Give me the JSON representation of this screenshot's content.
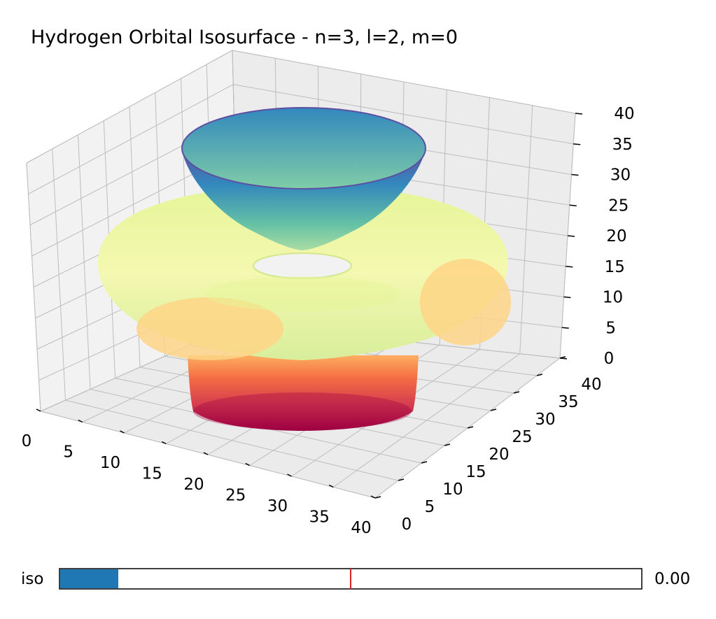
{
  "chart_data": {
    "type": "surface3d",
    "title": "Hydrogen Orbital Isosurface - n=3, l=2, m=0",
    "xlabel": "",
    "ylabel": "",
    "zlabel": "",
    "xlim": [
      0,
      40
    ],
    "ylim": [
      0,
      40
    ],
    "zlim": [
      0,
      40
    ],
    "x_ticks": [
      0,
      5,
      10,
      15,
      20,
      25,
      30,
      35,
      40
    ],
    "y_ticks": [
      0,
      5,
      10,
      15,
      20,
      25,
      30,
      35,
      40
    ],
    "z_ticks": [
      0,
      5,
      10,
      15,
      20,
      25,
      30,
      35,
      40
    ],
    "grid": true,
    "colormap": "Spectral",
    "lobes": [
      {
        "shape": "bowl",
        "position": "upper"
      },
      {
        "shape": "torus",
        "position": "middle"
      },
      {
        "shape": "bowl",
        "position": "lower"
      }
    ]
  },
  "slider": {
    "label": "iso",
    "value_text": "0.00",
    "fill_fraction": 0.1,
    "marker_fraction": 0.5,
    "fill_color": "#1f77b4",
    "marker_color": "#d62728"
  }
}
